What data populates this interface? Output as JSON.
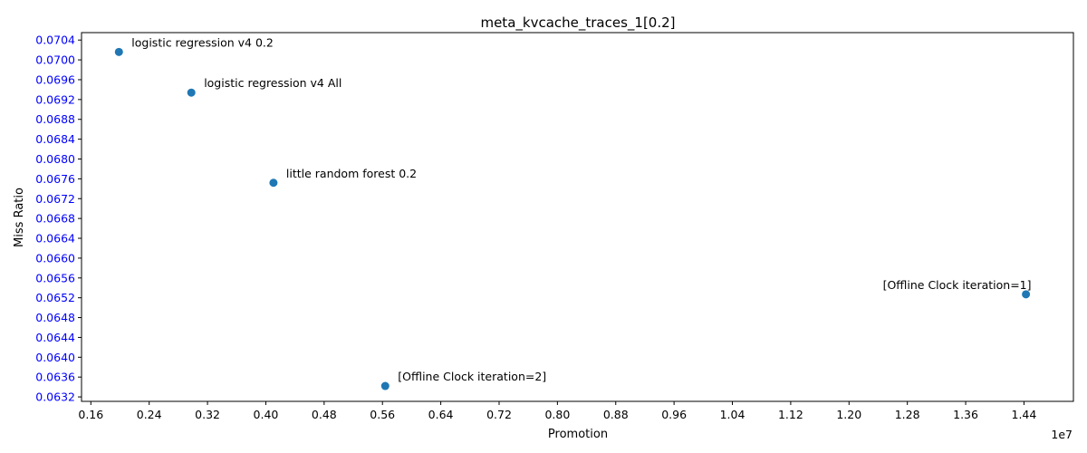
{
  "chart_data": {
    "type": "scatter",
    "title": "meta_kvcache_traces_1[0.2]",
    "xlabel": "Promotion",
    "ylabel": "Miss Ratio",
    "x_offset_label": "1e7",
    "xlim": [
      0.1472,
      1.5078
    ],
    "ylim": [
      0.06311,
      0.07055
    ],
    "xticks": [
      "0.16",
      "0.24",
      "0.32",
      "0.40",
      "0.48",
      "0.56",
      "0.64",
      "0.72",
      "0.80",
      "0.88",
      "0.96",
      "1.04",
      "1.12",
      "1.20",
      "1.28",
      "1.36",
      "1.44"
    ],
    "yticks": [
      "0.0632",
      "0.0636",
      "0.0640",
      "0.0644",
      "0.0648",
      "0.0652",
      "0.0656",
      "0.0660",
      "0.0664",
      "0.0668",
      "0.0672",
      "0.0676",
      "0.0680",
      "0.0684",
      "0.0688",
      "0.0692",
      "0.0696",
      "0.0700",
      "0.0704"
    ],
    "grid": false,
    "colors": {
      "point": "#1f77b4",
      "ytick": "#0000ff"
    },
    "points": [
      {
        "label": "logistic regression v4 0.2",
        "x": 0.1985,
        "y": 0.07016,
        "label_pos": "upper-right"
      },
      {
        "label": "logistic regression v4 All",
        "x": 0.2978,
        "y": 0.06934,
        "label_pos": "upper-right"
      },
      {
        "label": "little random forest 0.2",
        "x": 0.4105,
        "y": 0.06752,
        "label_pos": "upper-right"
      },
      {
        "label": "[Offline Clock iteration=1]",
        "x": 1.4427,
        "y": 0.06527,
        "label_pos": "upper-left"
      },
      {
        "label": "[Offline Clock iteration=2]",
        "x": 0.5638,
        "y": 0.06342,
        "label_pos": "upper-right"
      }
    ]
  }
}
